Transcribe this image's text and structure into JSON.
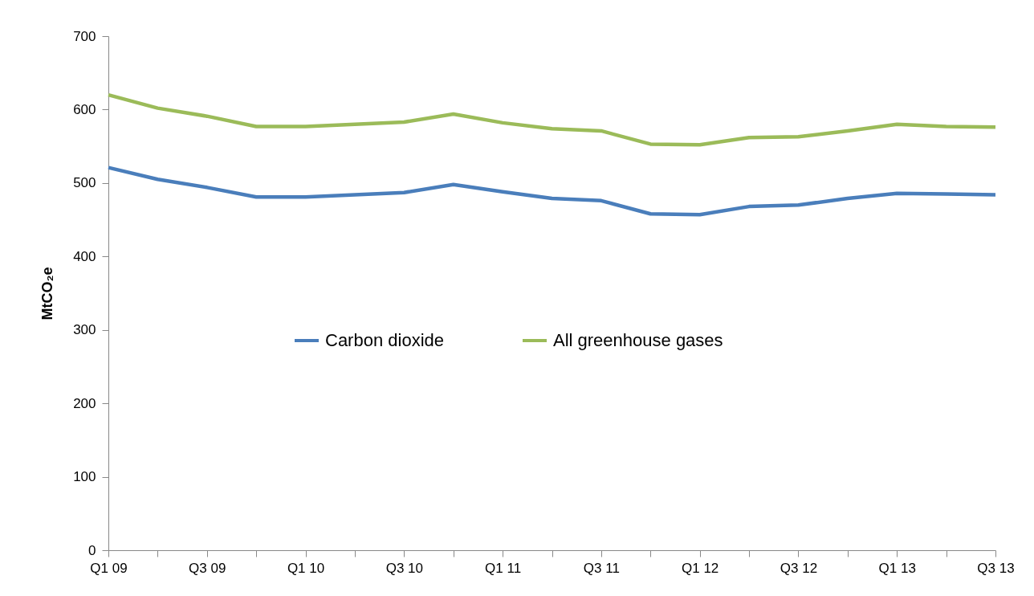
{
  "chart_data": {
    "type": "line",
    "ylabel": "MtCO₂e",
    "categories": [
      "Q1 09",
      null,
      "Q3 09",
      null,
      "Q1 10",
      null,
      "Q3 10",
      null,
      "Q1 11",
      null,
      "Q3 11",
      null,
      "Q1 12",
      null,
      "Q3 12",
      null,
      "Q1 13",
      null,
      "Q3 13"
    ],
    "series": [
      {
        "name": "Carbon dioxide",
        "color": "#4a7ebb",
        "values": [
          521,
          505,
          494,
          481,
          481,
          484,
          487,
          498,
          488,
          479,
          476,
          458,
          457,
          468,
          470,
          479,
          486,
          485,
          484
        ]
      },
      {
        "name": "All greenhouse gases",
        "color": "#9bbb59",
        "values": [
          620,
          602,
          591,
          577,
          577,
          580,
          583,
          594,
          582,
          574,
          571,
          553,
          552,
          562,
          563,
          571,
          580,
          577,
          576
        ]
      }
    ],
    "ylim": [
      0,
      700
    ],
    "yticks": [
      0,
      100,
      200,
      300,
      400,
      500,
      600,
      700
    ],
    "grid": false,
    "legend": "center",
    "marker": "none",
    "line_style": "solid"
  }
}
